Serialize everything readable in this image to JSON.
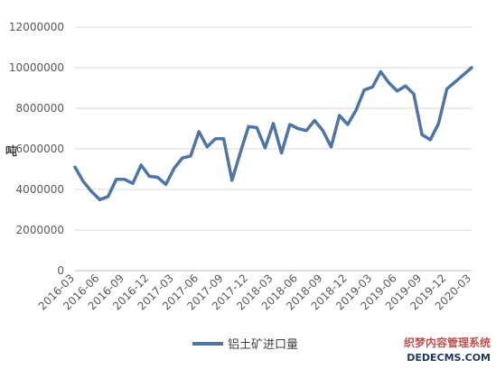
{
  "chart_data": {
    "type": "line",
    "title": "",
    "xlabel": "",
    "ylabel": "吨",
    "ylim": [
      0,
      12000000
    ],
    "yticks": [
      0,
      2000000,
      4000000,
      6000000,
      8000000,
      10000000,
      12000000
    ],
    "ytick_labels": [
      "0",
      "2000000",
      "4000000",
      "6000000",
      "8000000",
      "10000000",
      "12000000"
    ],
    "xtick_labels": [
      "2016-03",
      "2016-06",
      "2016-09",
      "2016-12",
      "2017-03",
      "2017-06",
      "2017-09",
      "2017-12",
      "2018-03",
      "2018-06",
      "2018-09",
      "2018-12",
      "2019-03",
      "2019-06",
      "2019-09",
      "2019-12",
      "2020-03"
    ],
    "grid": true,
    "legend_position": "bottom",
    "series_color": "#4f74a6",
    "categories": [
      "2016-03",
      "2016-04",
      "2016-05",
      "2016-06",
      "2016-07",
      "2016-08",
      "2016-09",
      "2016-10",
      "2016-11",
      "2016-12",
      "2017-01",
      "2017-02",
      "2017-03",
      "2017-04",
      "2017-05",
      "2017-06",
      "2017-07",
      "2017-08",
      "2017-09",
      "2017-10",
      "2017-11",
      "2017-12",
      "2018-01",
      "2018-02",
      "2018-03",
      "2018-04",
      "2018-05",
      "2018-06",
      "2018-07",
      "2018-08",
      "2018-09",
      "2018-10",
      "2018-11",
      "2018-12",
      "2019-01",
      "2019-02",
      "2019-03",
      "2019-04",
      "2019-05",
      "2019-06",
      "2019-07",
      "2019-08",
      "2019-09",
      "2019-10",
      "2019-11",
      "2019-12",
      "2020-01",
      "2020-02",
      "2020-03"
    ],
    "series": [
      {
        "name": "铝土矿进口量",
        "values": [
          5100000,
          4400000,
          3900000,
          3500000,
          3650000,
          4500000,
          4500000,
          4300000,
          5200000,
          4650000,
          4600000,
          4250000,
          5050000,
          5550000,
          5650000,
          6850000,
          6100000,
          6500000,
          6500000,
          4450000,
          5800000,
          7100000,
          7050000,
          6050000,
          7250000,
          5800000,
          7200000,
          7000000,
          6900000,
          7400000,
          6900000,
          6100000,
          7650000,
          7200000,
          7900000,
          8900000,
          9050000,
          9800000,
          9250000,
          8850000,
          9100000,
          8700000,
          6700000,
          6450000,
          7250000,
          8950000,
          9300000,
          9650000,
          10000000
        ]
      }
    ]
  },
  "watermark": {
    "line1": "织梦内容管理系统",
    "line2": "DEDECMS.COM"
  }
}
